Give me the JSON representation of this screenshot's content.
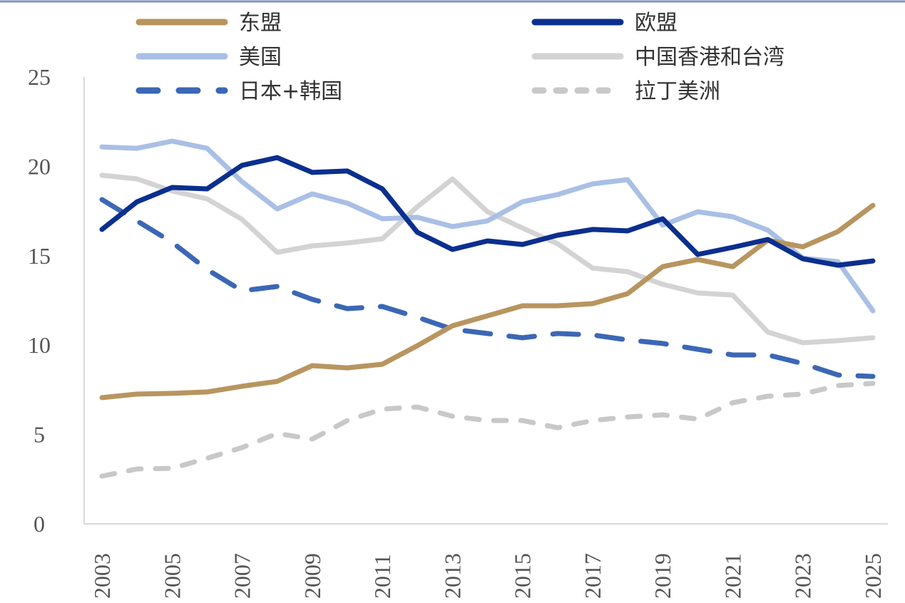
{
  "chart_data": {
    "type": "line",
    "title": "",
    "xlabel": "",
    "ylabel": "",
    "ylim": [
      0,
      25
    ],
    "yticks": [
      0,
      5,
      10,
      15,
      20,
      25
    ],
    "x": [
      2003,
      2004,
      2005,
      2006,
      2007,
      2008,
      2009,
      2010,
      2011,
      2012,
      2013,
      2014,
      2015,
      2016,
      2017,
      2018,
      2019,
      2020,
      2021,
      2022,
      2023,
      2024,
      2025
    ],
    "xtick_labels": [
      "2003",
      "2005",
      "2007",
      "2009",
      "2011",
      "2013",
      "2015",
      "2017",
      "2019",
      "2021",
      "2023",
      "2025"
    ],
    "grid": false,
    "legend_position": "top",
    "series": [
      {
        "name": "东盟",
        "color": "#B8955F",
        "style": "solid",
        "values": [
          7.06,
          7.26,
          7.3,
          7.38,
          7.7,
          7.97,
          8.85,
          8.73,
          8.93,
          9.97,
          11.08,
          11.64,
          12.2,
          12.2,
          12.32,
          12.88,
          14.39,
          14.79,
          14.39,
          15.87,
          15.5,
          16.35,
          17.82
        ]
      },
      {
        "name": "欧盟",
        "color": "#0A2F8F",
        "style": "solid",
        "values": [
          16.47,
          18.02,
          18.82,
          18.74,
          20.06,
          20.49,
          19.66,
          19.74,
          18.74,
          16.31,
          15.35,
          15.83,
          15.63,
          16.15,
          16.47,
          16.39,
          17.07,
          15.07,
          15.47,
          15.91,
          14.83,
          14.47,
          14.71
        ]
      },
      {
        "name": "美国",
        "color": "#A9BFE6",
        "style": "solid",
        "values": [
          21.09,
          21.01,
          21.41,
          21.01,
          19.14,
          17.62,
          18.46,
          17.94,
          17.07,
          17.15,
          16.63,
          16.95,
          18.02,
          18.42,
          19.02,
          19.26,
          16.71,
          17.46,
          17.18,
          16.43,
          14.87,
          14.67,
          11.92
        ]
      },
      {
        "name": "中国香港和台湾",
        "color": "#D3D3D3",
        "style": "solid",
        "values": [
          19.5,
          19.3,
          18.62,
          18.18,
          17.03,
          15.19,
          15.55,
          15.71,
          15.95,
          17.74,
          19.3,
          17.46,
          16.55,
          15.67,
          14.31,
          14.11,
          13.4,
          12.92,
          12.8,
          10.73,
          10.13,
          10.25,
          10.41
        ]
      },
      {
        "name": "日本+韩国",
        "color": "#3B67B5",
        "style": "dashed",
        "values": [
          18.14,
          16.95,
          15.75,
          14.23,
          13.04,
          13.28,
          12.56,
          12.04,
          12.16,
          11.56,
          10.89,
          10.65,
          10.41,
          10.65,
          10.57,
          10.29,
          10.09,
          9.77,
          9.45,
          9.45,
          8.97,
          8.33,
          8.25
        ]
      },
      {
        "name": "拉丁美洲",
        "color": "#C8C8C8",
        "style": "dotted",
        "values": [
          2.67,
          3.07,
          3.11,
          3.67,
          4.27,
          5.06,
          4.74,
          5.78,
          6.42,
          6.54,
          6.02,
          5.78,
          5.78,
          5.38,
          5.78,
          5.98,
          6.1,
          5.86,
          6.78,
          7.14,
          7.26,
          7.74,
          7.86
        ]
      }
    ]
  }
}
